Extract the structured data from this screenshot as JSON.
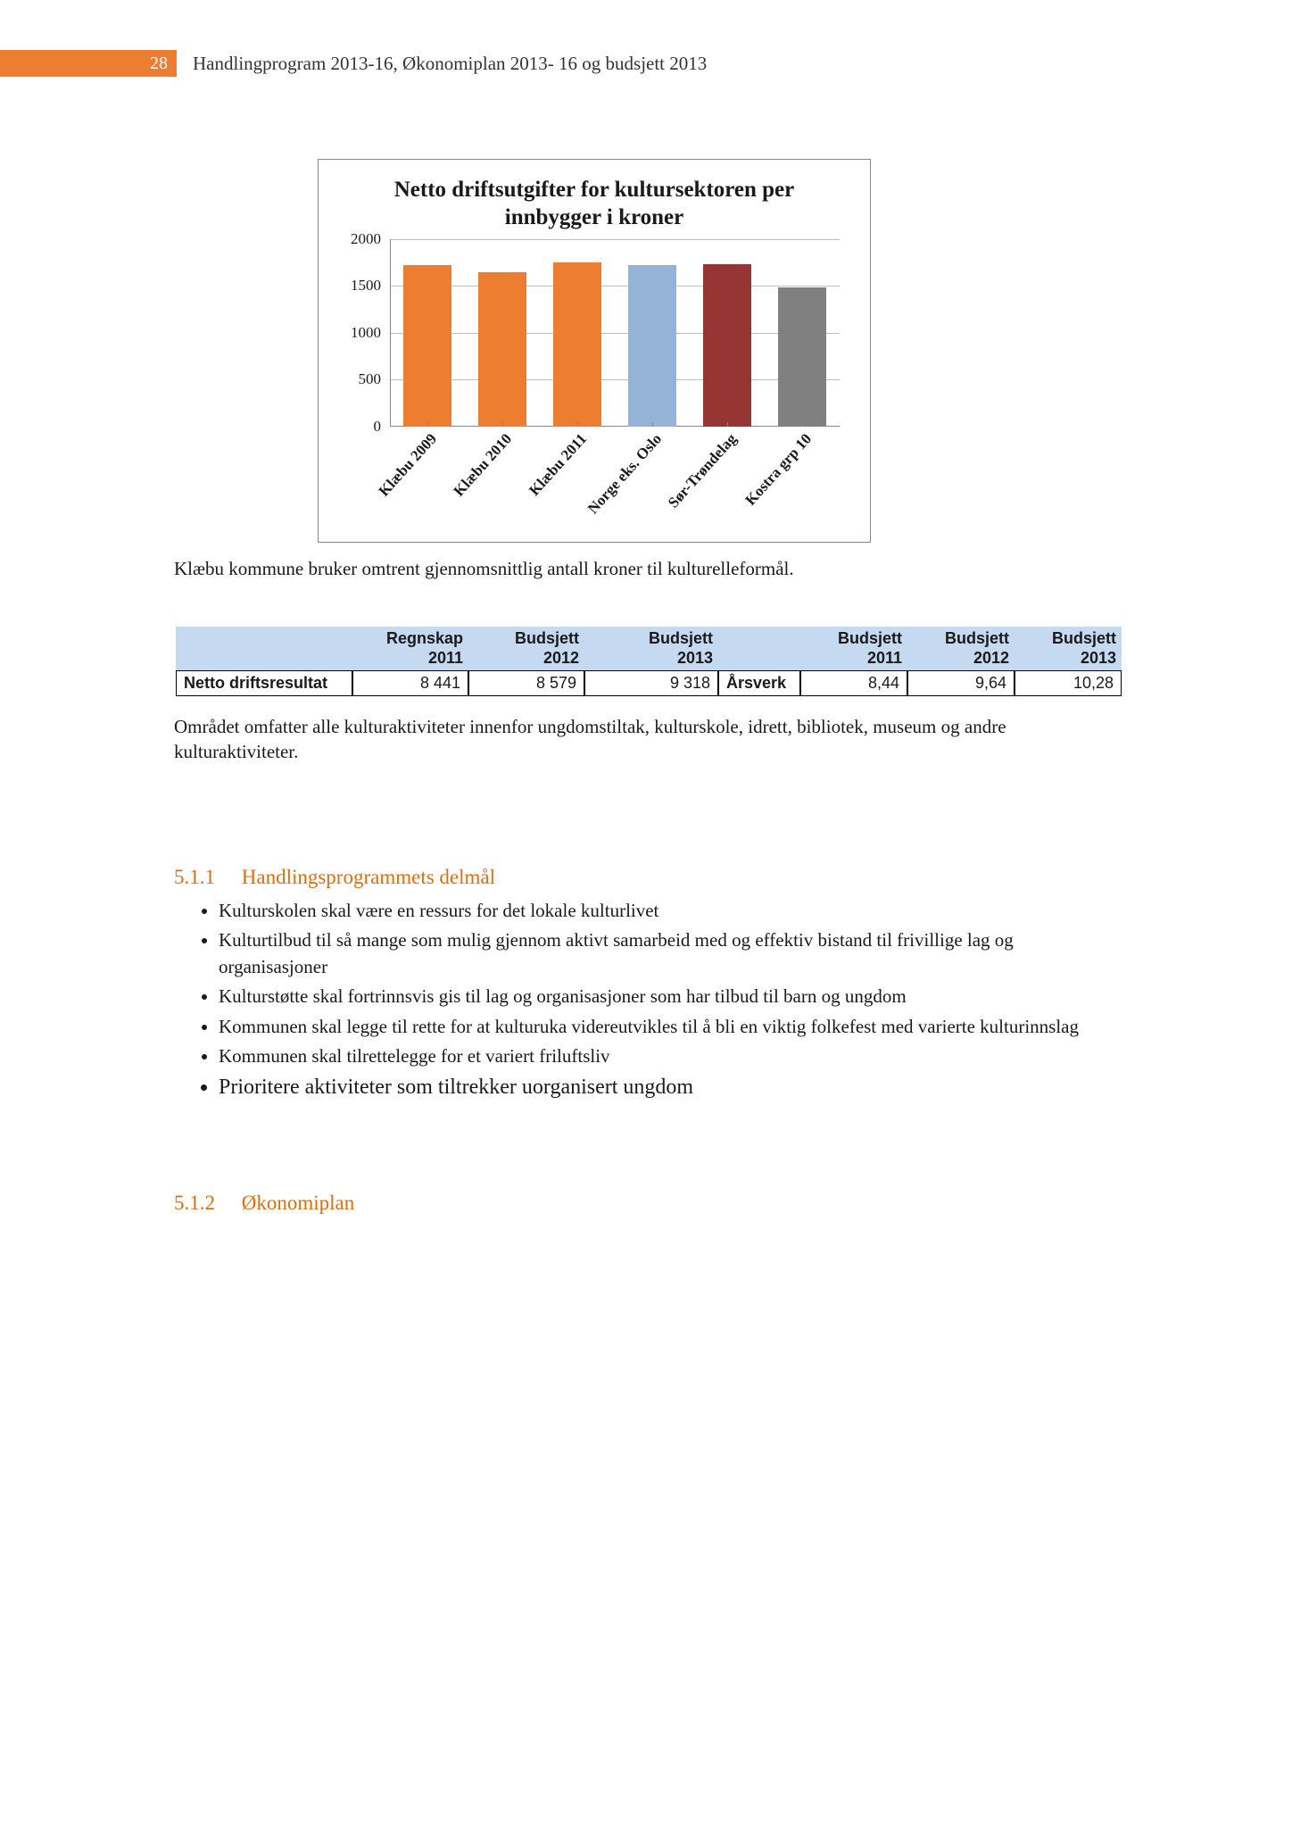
{
  "page_number": "28",
  "header_title": "Handlingprogram 2013-16, Økonomiplan 2013- 16 og budsjett 2013",
  "chart": {
    "type": "bar",
    "title": "Netto driftsutgifter for kultursektoren per innbygger i kroner",
    "categories": [
      "Klæbu 2009",
      "Klæbu 2010",
      "Klæbu 2011",
      "Norge eks. Oslo",
      "Sør-Trøndelag",
      "Kostra grp 10"
    ],
    "values": [
      1720,
      1640,
      1750,
      1720,
      1730,
      1480
    ],
    "bar_colors": [
      "#ed7d31",
      "#ed7d31",
      "#ed7d31",
      "#95b3d7",
      "#963634",
      "#808080"
    ],
    "y_ticks": [
      0,
      500,
      1000,
      1500,
      2000
    ],
    "ylim": [
      0,
      2000
    ],
    "grid_color": "#bfbfbf",
    "axis_color": "#888888",
    "background_color": "#ffffff",
    "title_fontsize": 25,
    "tick_fontsize": 17
  },
  "caption": "Klæbu kommune bruker omtrent gjennomsnittlig antall kroner til kulturelleformål.",
  "table": {
    "header_bg": "#c5d9f1",
    "headers": {
      "regnskap_2011": "Regnskap 2011",
      "budsjett_2012": "Budsjett 2012",
      "budsjett_2013": "Budsjett 2013",
      "a_budsjett_2011": "Budsjett 2011",
      "a_budsjett_2012": "Budsjett 2012",
      "a_budsjett_2013": "Budsjett 2013"
    },
    "row": {
      "label": "Netto driftsresultat",
      "r2011": "8 441",
      "b2012": "8 579",
      "b2013": "9 318",
      "arsverk": "Årsverk",
      "a2011": "8,44",
      "a2012": "9,64",
      "a2013": "10,28"
    }
  },
  "desc": "Området omfatter alle kulturaktiviteter innenfor ungdomstiltak, kulturskole, idrett, bibliotek, museum og andre kulturaktiviteter.",
  "section_511": {
    "num": "5.1.1",
    "title": "Handlingsprogrammets delmål",
    "bullets": [
      "Kulturskolen skal være en ressurs for det lokale kulturlivet",
      "Kulturtilbud til så mange som mulig gjennom aktivt samarbeid med og effektiv bistand til frivillige lag og organisasjoner",
      "Kulturstøtte skal fortrinnsvis gis til lag og organisasjoner som har tilbud til barn og ungdom",
      "Kommunen skal legge til rette for at kulturuka videreutvikles til å bli en viktig folkefest med varierte kulturinnslag",
      "Kommunen skal tilrettelegge for et variert friluftsliv",
      "Prioritere aktiviteter som tiltrekker uorganisert ungdom"
    ]
  },
  "section_512": {
    "num": "5.1.2",
    "title": "Økonomiplan"
  }
}
